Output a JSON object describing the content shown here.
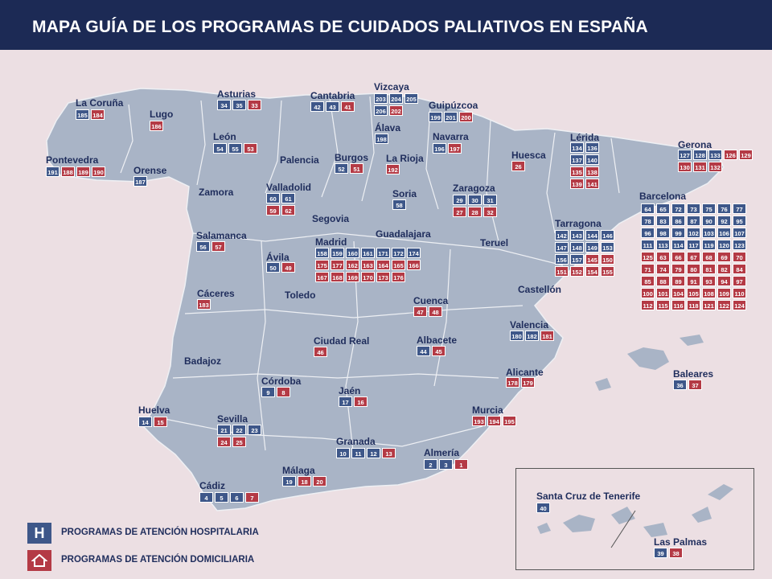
{
  "title": "MAPA GUÍA DE LOS PROGRAMAS DE CUIDADOS PALIATIVOS EN ESPAÑA",
  "colors": {
    "header": "#1c2a55",
    "hospital": "#3e5789",
    "domicilio": "#b43a45",
    "land": "#a9b4c6",
    "background": "#ecdfe3"
  },
  "legend": {
    "hospital_label": "PROGRAMAS DE ATENCIÓN HOSPITALARIA",
    "domicilio_label": "PROGRAMAS DE ATENCIÓN DOMICILIARIA",
    "hospital_icon": "H",
    "domicilio_icon": "house-icon"
  },
  "provinces": [
    {
      "name": "La Coruña",
      "boxes": [
        [
          "h",
          "185"
        ],
        [
          "d",
          "184"
        ]
      ]
    },
    {
      "name": "Lugo",
      "boxes": [
        [
          "d",
          "186"
        ]
      ]
    },
    {
      "name": "Asturias",
      "boxes": [
        [
          "h",
          "34"
        ],
        [
          "h",
          "35"
        ],
        [
          "d",
          "33"
        ]
      ]
    },
    {
      "name": "Cantabria",
      "boxes": [
        [
          "h",
          "42"
        ],
        [
          "h",
          "43"
        ],
        [
          "d",
          "41"
        ]
      ]
    },
    {
      "name": "Vizcaya",
      "boxes": [
        [
          "h",
          "203"
        ],
        [
          "h",
          "204"
        ],
        [
          "h",
          "205"
        ],
        [
          "h",
          "206"
        ],
        [
          "d",
          "202"
        ]
      ]
    },
    {
      "name": "Guipúzcoa",
      "boxes": [
        [
          "h",
          "199"
        ],
        [
          "h",
          "201"
        ],
        [
          "d",
          "200"
        ]
      ]
    },
    {
      "name": "Álava",
      "boxes": [
        [
          "h",
          "198"
        ]
      ]
    },
    {
      "name": "Navarra",
      "boxes": [
        [
          "h",
          "196"
        ],
        [
          "d",
          "197"
        ]
      ]
    },
    {
      "name": "Pontevedra",
      "boxes": [
        [
          "h",
          "191"
        ],
        [
          "d",
          "188"
        ],
        [
          "d",
          "189"
        ],
        [
          "d",
          "190"
        ]
      ]
    },
    {
      "name": "Orense",
      "boxes": [
        [
          "h",
          "187"
        ]
      ]
    },
    {
      "name": "León",
      "boxes": [
        [
          "h",
          "54"
        ],
        [
          "h",
          "55"
        ],
        [
          "d",
          "53"
        ]
      ]
    },
    {
      "name": "Palencia",
      "boxes": []
    },
    {
      "name": "Burgos",
      "boxes": [
        [
          "h",
          "52"
        ],
        [
          "d",
          "51"
        ]
      ]
    },
    {
      "name": "La Rioja",
      "boxes": [
        [
          "d",
          "192"
        ]
      ]
    },
    {
      "name": "Huesca",
      "boxes": [
        [
          "d",
          "26"
        ]
      ]
    },
    {
      "name": "Lérida",
      "boxes": [
        [
          "h",
          "134"
        ],
        [
          "h",
          "136"
        ],
        [
          "h",
          "137"
        ],
        [
          "h",
          "140"
        ],
        [
          "d",
          "135"
        ],
        [
          "d",
          "138"
        ],
        [
          "d",
          "139"
        ],
        [
          "d",
          "141"
        ]
      ]
    },
    {
      "name": "Gerona",
      "boxes": [
        [
          "h",
          "127"
        ],
        [
          "h",
          "128"
        ],
        [
          "h",
          "133"
        ],
        [
          "d",
          "126"
        ],
        [
          "d",
          "129"
        ],
        [
          "d",
          "130"
        ],
        [
          "d",
          "131"
        ],
        [
          "d",
          "132"
        ]
      ]
    },
    {
      "name": "Zamora",
      "boxes": []
    },
    {
      "name": "Valladolid",
      "boxes": [
        [
          "h",
          "60"
        ],
        [
          "h",
          "61"
        ],
        [
          "d",
          "59"
        ],
        [
          "d",
          "62"
        ]
      ]
    },
    {
      "name": "Soria",
      "boxes": [
        [
          "h",
          "58"
        ]
      ]
    },
    {
      "name": "Zaragoza",
      "boxes": [
        [
          "h",
          "29"
        ],
        [
          "h",
          "30"
        ],
        [
          "h",
          "31"
        ],
        [
          "d",
          "27"
        ],
        [
          "d",
          "28"
        ],
        [
          "d",
          "32"
        ]
      ]
    },
    {
      "name": "Segovia",
      "boxes": []
    },
    {
      "name": "Salamanca",
      "boxes": [
        [
          "h",
          "56"
        ],
        [
          "d",
          "57"
        ]
      ]
    },
    {
      "name": "Madrid",
      "boxes": [
        [
          "h",
          "158"
        ],
        [
          "h",
          "159"
        ],
        [
          "h",
          "160"
        ],
        [
          "h",
          "161"
        ],
        [
          "h",
          "171"
        ],
        [
          "h",
          "172"
        ],
        [
          "h",
          "174"
        ],
        [
          "d",
          "175"
        ],
        [
          "d",
          "177"
        ],
        [
          "d",
          "162"
        ],
        [
          "d",
          "163"
        ],
        [
          "d",
          "164"
        ],
        [
          "d",
          "165"
        ],
        [
          "d",
          "166"
        ],
        [
          "d",
          "167"
        ],
        [
          "d",
          "168"
        ],
        [
          "d",
          "169"
        ],
        [
          "d",
          "170"
        ],
        [
          "d",
          "173"
        ],
        [
          "d",
          "176"
        ]
      ]
    },
    {
      "name": "Guadalajara",
      "boxes": []
    },
    {
      "name": "Ávila",
      "boxes": [
        [
          "h",
          "50"
        ],
        [
          "d",
          "49"
        ]
      ]
    },
    {
      "name": "Teruel",
      "boxes": []
    },
    {
      "name": "Tarragona",
      "boxes": [
        [
          "h",
          "142"
        ],
        [
          "h",
          "143"
        ],
        [
          "h",
          "144"
        ],
        [
          "h",
          "146"
        ],
        [
          "h",
          "147"
        ],
        [
          "h",
          "148"
        ],
        [
          "h",
          "149"
        ],
        [
          "h",
          "153"
        ],
        [
          "h",
          "156"
        ],
        [
          "h",
          "157"
        ],
        [
          "d",
          "145"
        ],
        [
          "d",
          "150"
        ],
        [
          "d",
          "151"
        ],
        [
          "d",
          "152"
        ],
        [
          "d",
          "154"
        ],
        [
          "d",
          "155"
        ]
      ]
    },
    {
      "name": "Barcelona",
      "boxes": [
        [
          "h",
          "64"
        ],
        [
          "h",
          "65"
        ],
        [
          "h",
          "72"
        ],
        [
          "h",
          "73"
        ],
        [
          "h",
          "75"
        ],
        [
          "h",
          "76"
        ],
        [
          "h",
          "77"
        ],
        [
          "h",
          "78"
        ],
        [
          "h",
          "83"
        ],
        [
          "h",
          "86"
        ],
        [
          "h",
          "87"
        ],
        [
          "h",
          "90"
        ],
        [
          "h",
          "92"
        ],
        [
          "h",
          "95"
        ],
        [
          "h",
          "96"
        ],
        [
          "h",
          "98"
        ],
        [
          "h",
          "99"
        ],
        [
          "h",
          "102"
        ],
        [
          "h",
          "103"
        ],
        [
          "h",
          "106"
        ],
        [
          "h",
          "107"
        ],
        [
          "h",
          "111"
        ],
        [
          "h",
          "113"
        ],
        [
          "h",
          "114"
        ],
        [
          "h",
          "117"
        ],
        [
          "h",
          "119"
        ],
        [
          "h",
          "120"
        ],
        [
          "h",
          "123"
        ],
        [
          "d",
          "125"
        ],
        [
          "d",
          "63"
        ],
        [
          "d",
          "66"
        ],
        [
          "d",
          "67"
        ],
        [
          "d",
          "68"
        ],
        [
          "d",
          "69"
        ],
        [
          "d",
          "70"
        ],
        [
          "d",
          "71"
        ],
        [
          "d",
          "74"
        ],
        [
          "d",
          "79"
        ],
        [
          "d",
          "80"
        ],
        [
          "d",
          "81"
        ],
        [
          "d",
          "82"
        ],
        [
          "d",
          "84"
        ],
        [
          "d",
          "85"
        ],
        [
          "d",
          "88"
        ],
        [
          "d",
          "89"
        ],
        [
          "d",
          "91"
        ],
        [
          "d",
          "93"
        ],
        [
          "d",
          "94"
        ],
        [
          "d",
          "97"
        ],
        [
          "d",
          "100"
        ],
        [
          "d",
          "101"
        ],
        [
          "d",
          "104"
        ],
        [
          "d",
          "105"
        ],
        [
          "d",
          "108"
        ],
        [
          "d",
          "109"
        ],
        [
          "d",
          "110"
        ],
        [
          "d",
          "112"
        ],
        [
          "d",
          "115"
        ],
        [
          "d",
          "116"
        ],
        [
          "d",
          "118"
        ],
        [
          "d",
          "121"
        ],
        [
          "d",
          "122"
        ],
        [
          "d",
          "124"
        ]
      ]
    },
    {
      "name": "Cáceres",
      "boxes": [
        [
          "d",
          "183"
        ]
      ]
    },
    {
      "name": "Toledo",
      "boxes": []
    },
    {
      "name": "Cuenca",
      "boxes": [
        [
          "d",
          "47"
        ],
        [
          "d",
          "48"
        ]
      ]
    },
    {
      "name": "Castellón",
      "boxes": []
    },
    {
      "name": "Ciudad Real",
      "boxes": [
        [
          "d",
          "46"
        ]
      ]
    },
    {
      "name": "Albacete",
      "boxes": [
        [
          "h",
          "44"
        ],
        [
          "d",
          "45"
        ]
      ]
    },
    {
      "name": "Valencia",
      "boxes": [
        [
          "h",
          "180"
        ],
        [
          "h",
          "182"
        ],
        [
          "d",
          "181"
        ]
      ]
    },
    {
      "name": "Badajoz",
      "boxes": []
    },
    {
      "name": "Córdoba",
      "boxes": [
        [
          "h",
          "9"
        ],
        [
          "d",
          "8"
        ]
      ]
    },
    {
      "name": "Alicante",
      "boxes": [
        [
          "d",
          "178"
        ],
        [
          "d",
          "179"
        ]
      ]
    },
    {
      "name": "Baleares",
      "boxes": [
        [
          "h",
          "36"
        ],
        [
          "d",
          "37"
        ]
      ]
    },
    {
      "name": "Jaén",
      "boxes": [
        [
          "h",
          "17"
        ],
        [
          "d",
          "16"
        ]
      ]
    },
    {
      "name": "Huelva",
      "boxes": [
        [
          "h",
          "14"
        ],
        [
          "d",
          "15"
        ]
      ]
    },
    {
      "name": "Sevilla",
      "boxes": [
        [
          "h",
          "21"
        ],
        [
          "h",
          "22"
        ],
        [
          "h",
          "23"
        ],
        [
          "d",
          "24"
        ],
        [
          "d",
          "25"
        ]
      ]
    },
    {
      "name": "Murcia",
      "boxes": [
        [
          "d",
          "193"
        ],
        [
          "d",
          "194"
        ],
        [
          "d",
          "195"
        ]
      ]
    },
    {
      "name": "Granada",
      "boxes": [
        [
          "h",
          "10"
        ],
        [
          "h",
          "11"
        ],
        [
          "h",
          "12"
        ],
        [
          "d",
          "13"
        ]
      ]
    },
    {
      "name": "Almería",
      "boxes": [
        [
          "h",
          "2"
        ],
        [
          "h",
          "3"
        ],
        [
          "d",
          "1"
        ]
      ]
    },
    {
      "name": "Málaga",
      "boxes": [
        [
          "h",
          "19"
        ],
        [
          "d",
          "18"
        ],
        [
          "d",
          "20"
        ]
      ]
    },
    {
      "name": "Cádiz",
      "boxes": [
        [
          "h",
          "4"
        ],
        [
          "h",
          "5"
        ],
        [
          "h",
          "6"
        ],
        [
          "d",
          "7"
        ]
      ]
    },
    {
      "name": "Santa Cruz de Tenerife",
      "boxes": [
        [
          "h",
          "40"
        ]
      ]
    },
    {
      "name": "Las Palmas",
      "boxes": [
        [
          "h",
          "39"
        ],
        [
          "d",
          "38"
        ]
      ]
    }
  ]
}
